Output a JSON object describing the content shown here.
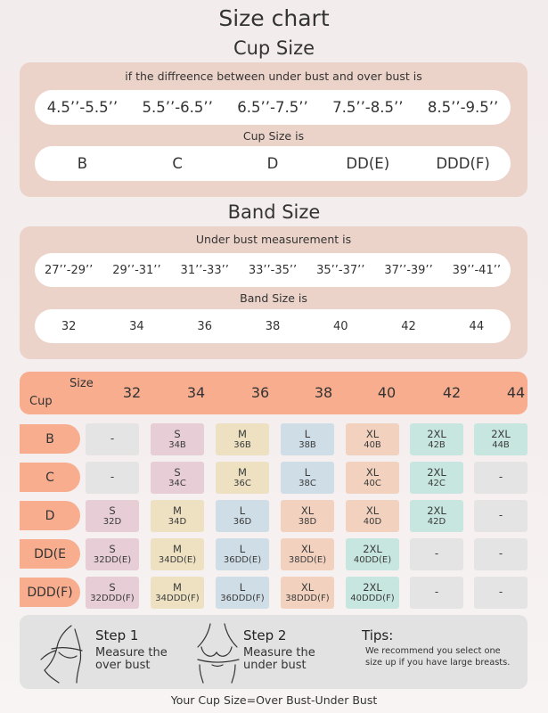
{
  "title": "Size chart",
  "cup_section": {
    "title": "Cup Size",
    "diff_caption": "if the diffreence between under bust and over bust is",
    "diffs": [
      "4.5’’-5.5’’",
      "5.5’’-6.5’’",
      "6.5’’-7.5’’",
      "7.5’’-8.5’’",
      "8.5’’-9.5’’"
    ],
    "cup_caption": "Cup Size is",
    "cups": [
      "B",
      "C",
      "D",
      "DD(E)",
      "DDD(F)"
    ]
  },
  "band_section": {
    "title": "Band Size",
    "measure_caption": "Under bust measurement is",
    "measures": [
      "27’’-29’’",
      "29’’-31’’",
      "31’’-33’’",
      "33’’-35’’",
      "35’’-37’’",
      "37’’-39’’",
      "39’’-41’’"
    ],
    "band_caption": "Band Size is",
    "bands": [
      "32",
      "34",
      "36",
      "38",
      "40",
      "42",
      "44"
    ]
  },
  "table": {
    "header_size": "Size",
    "header_cup": "Cup",
    "columns": [
      "32",
      "34",
      "36",
      "38",
      "40",
      "42",
      "44"
    ],
    "rows": [
      {
        "label": "B",
        "cells": [
          null,
          [
            "S",
            "34B"
          ],
          [
            "M",
            "36B"
          ],
          [
            "L",
            "38B"
          ],
          [
            "XL",
            "40B"
          ],
          [
            "2XL",
            "42B"
          ],
          [
            "2XL",
            "44B"
          ]
        ]
      },
      {
        "label": "C",
        "cells": [
          null,
          [
            "S",
            "34C"
          ],
          [
            "M",
            "36C"
          ],
          [
            "L",
            "38C"
          ],
          [
            "XL",
            "40C"
          ],
          [
            "2XL",
            "42C"
          ],
          null
        ]
      },
      {
        "label": "D",
        "cells": [
          [
            "S",
            "32D"
          ],
          [
            "M",
            "34D"
          ],
          [
            "L",
            "36D"
          ],
          [
            "XL",
            "38D"
          ],
          [
            "XL",
            "40D"
          ],
          [
            "2XL",
            "42D"
          ],
          null
        ]
      },
      {
        "label": "DD(E",
        "cells": [
          [
            "S",
            "32DD(E)"
          ],
          [
            "M",
            "34DD(E)"
          ],
          [
            "L",
            "36DD(E)"
          ],
          [
            "XL",
            "38DD(E)"
          ],
          [
            "2XL",
            "40DD(E)"
          ],
          null,
          null
        ]
      },
      {
        "label": "DDD(F)",
        "cells": [
          [
            "S",
            "32DDD(F)"
          ],
          [
            "M",
            "34DDD(F)"
          ],
          [
            "L",
            "36DDD(F)"
          ],
          [
            "XL",
            "38DDD(F)"
          ],
          [
            "2XL",
            "40DDD(F)"
          ],
          null,
          null
        ]
      }
    ],
    "empty_mark": "-",
    "size_colors": {
      "S": "#e6cdd6",
      "M": "#ede1c2",
      "L": "#cfdde7",
      "XL": "#f2d2bf",
      "2XL": "#c7e6df",
      "empty": "#e4e4e4"
    }
  },
  "steps": {
    "step1_title": "Step 1",
    "step1_line1": "Measure the",
    "step1_line2": "over bust",
    "step2_title": "Step 2",
    "step2_line1": "Measure the",
    "step2_line2": "under bust",
    "tips_title": "Tips:",
    "tips_line1": "We recommend you select one",
    "tips_line2": "size up if you have large breasts."
  },
  "formula": "Your Cup Size=Over Bust-Under Bust"
}
